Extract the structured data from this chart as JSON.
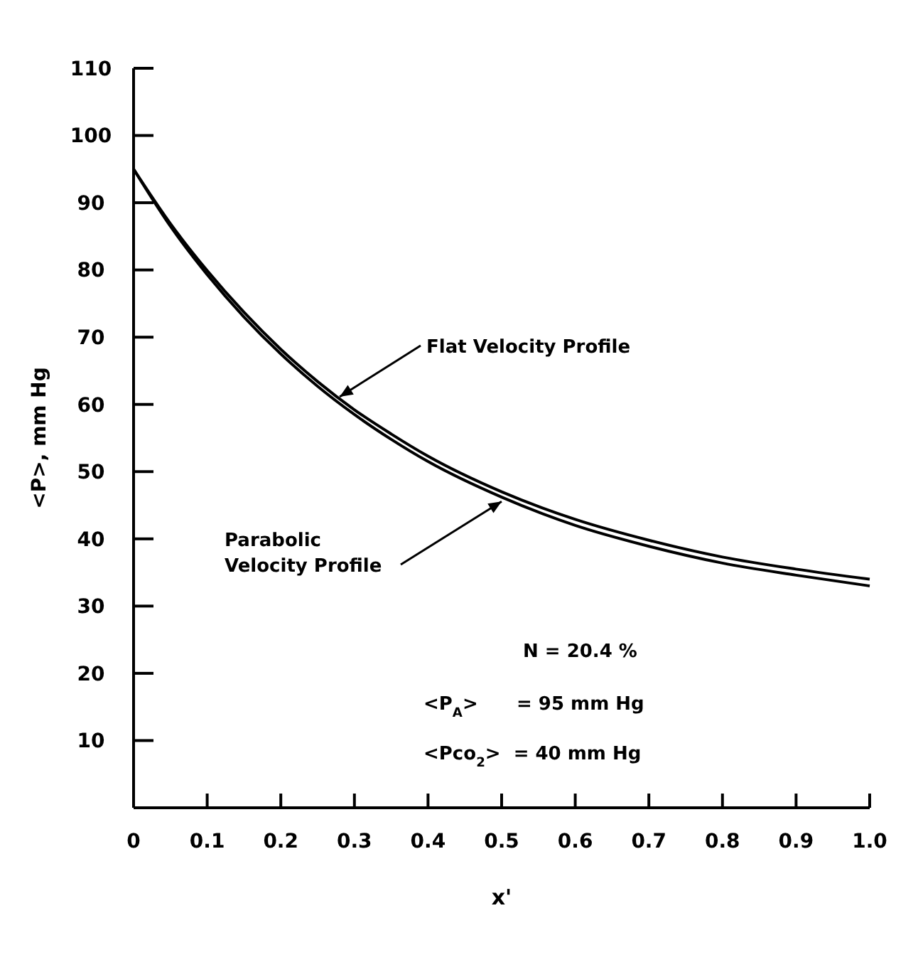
{
  "chart_data": {
    "type": "line",
    "xlabel": "x'",
    "ylabel": "<P>, mm Hg",
    "x": [
      0,
      0.05,
      0.1,
      0.15,
      0.2,
      0.25,
      0.3,
      0.35,
      0.4,
      0.5,
      0.6,
      0.7,
      0.8,
      0.9,
      1.0
    ],
    "series": [
      {
        "color": "#000000",
        "values": [
          95,
          86.9,
          79.9,
          73.7,
          68.2,
          63.4,
          59.2,
          55.6,
          52.3,
          47.0,
          42.9,
          39.8,
          37.3,
          35.5,
          34.0
        ]
      },
      {
        "color": "#000000",
        "values": [
          95,
          86.5,
          79.3,
          73.0,
          67.5,
          62.7,
          58.5,
          54.8,
          51.5,
          46.2,
          42.0,
          38.9,
          36.4,
          34.6,
          33.0
        ]
      }
    ],
    "xlim": [
      0,
      1.0
    ],
    "xticks": [
      0,
      {
        "value": 0.1,
        "label": "0.1"
      },
      {
        "value": 0.2,
        "label": "0.2"
      },
      {
        "value": 0.3,
        "label": "0.3"
      },
      {
        "value": 0.4,
        "label": "0.4"
      },
      {
        "value": 0.5,
        "label": "0.5"
      },
      {
        "value": 0.6,
        "label": "0.6"
      },
      {
        "value": 0.7,
        "label": "0.7"
      },
      {
        "value": 0.8,
        "label": "0.8"
      },
      {
        "value": 0.9,
        "label": "0.9"
      },
      {
        "value": 1.0,
        "label": "1.0"
      }
    ],
    "ylim": [
      0,
      110
    ],
    "yticks": [
      10,
      20,
      30,
      40,
      50,
      60,
      70,
      80,
      90,
      100,
      110
    ],
    "annotations": [
      {
        "text": "Flat Velocity Profile",
        "x": 0.28,
        "y": 60.5
      },
      {
        "text": "Parabolic Velocity Profile",
        "x": 0.5,
        "y": 46.2
      },
      "N = 20.4 %",
      "<P$_{A}$>      = 95 mm Hg",
      "<Pco$_{2}$>  = 40 mm Hg"
    ],
    "grid": false,
    "marker": "none",
    "line_style": "solid"
  }
}
